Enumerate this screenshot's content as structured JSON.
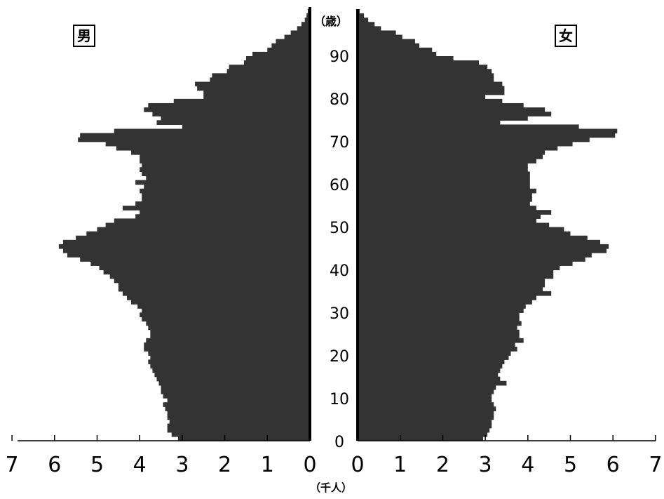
{
  "chart_data": {
    "type": "bar",
    "orientation": "horizontal",
    "title": "",
    "male_label": "男",
    "female_label": "女",
    "age_unit": "（歳）",
    "x_unit": "（千人）",
    "xlim": [
      0,
      7
    ],
    "x_ticks": [
      "0",
      "1",
      "2",
      "3",
      "4",
      "5",
      "6",
      "7"
    ],
    "age_ticks": [
      "0",
      "10",
      "20",
      "30",
      "40",
      "50",
      "60",
      "70",
      "80",
      "90"
    ],
    "grid": false,
    "colors": {
      "bar": "#333333",
      "axis": "#000000"
    },
    "ages": [
      0,
      1,
      2,
      3,
      4,
      5,
      6,
      7,
      8,
      9,
      10,
      11,
      12,
      13,
      14,
      15,
      16,
      17,
      18,
      19,
      20,
      21,
      22,
      23,
      24,
      25,
      26,
      27,
      28,
      29,
      30,
      31,
      32,
      33,
      34,
      35,
      36,
      37,
      38,
      39,
      40,
      41,
      42,
      43,
      44,
      45,
      46,
      47,
      48,
      49,
      50,
      51,
      52,
      53,
      54,
      55,
      56,
      57,
      58,
      59,
      60,
      61,
      62,
      63,
      64,
      65,
      66,
      67,
      68,
      69,
      70,
      71,
      72,
      73,
      74,
      75,
      76,
      77,
      78,
      79,
      80,
      81,
      82,
      83,
      84,
      85,
      86,
      87,
      88,
      89,
      90,
      91,
      92,
      93,
      94,
      95,
      96,
      97,
      98,
      99,
      100
    ],
    "series": [
      {
        "name": "男",
        "values": [
          3.1,
          3.25,
          3.35,
          3.35,
          3.3,
          3.35,
          3.35,
          3.4,
          3.45,
          3.35,
          3.45,
          3.5,
          3.5,
          3.55,
          3.6,
          3.65,
          3.7,
          3.75,
          3.8,
          3.75,
          3.8,
          3.9,
          3.9,
          3.85,
          3.75,
          3.75,
          3.8,
          3.85,
          3.95,
          4.0,
          3.95,
          4.05,
          4.2,
          4.3,
          4.4,
          4.5,
          4.5,
          4.6,
          4.7,
          4.85,
          4.95,
          5.15,
          5.4,
          5.7,
          5.8,
          5.9,
          5.8,
          5.5,
          5.25,
          5.0,
          4.8,
          4.6,
          4.1,
          4.0,
          4.4,
          4.1,
          3.95,
          3.95,
          4.0,
          3.9,
          4.1,
          3.85,
          3.95,
          4.0,
          3.95,
          4.0,
          4.0,
          4.2,
          4.55,
          4.8,
          5.45,
          5.4,
          4.6,
          3.0,
          3.6,
          3.5,
          3.7,
          3.9,
          3.8,
          3.2,
          2.5,
          2.5,
          2.65,
          2.7,
          2.35,
          2.3,
          1.95,
          1.9,
          1.55,
          1.5,
          1.35,
          1.0,
          0.9,
          0.8,
          0.6,
          0.45,
          0.3,
          0.2,
          0.12,
          0.08,
          0.05
        ]
      },
      {
        "name": "女",
        "values": [
          2.95,
          3.05,
          3.1,
          3.15,
          3.15,
          3.2,
          3.2,
          3.25,
          3.2,
          3.15,
          3.15,
          3.2,
          3.25,
          3.5,
          3.35,
          3.3,
          3.35,
          3.4,
          3.45,
          3.55,
          3.6,
          3.75,
          3.7,
          3.9,
          3.8,
          3.8,
          3.75,
          3.85,
          3.8,
          3.8,
          3.9,
          3.95,
          4.1,
          4.2,
          4.55,
          4.35,
          4.4,
          4.4,
          4.6,
          4.6,
          4.75,
          5.05,
          5.35,
          5.5,
          5.85,
          5.9,
          5.7,
          5.4,
          5.0,
          4.85,
          4.5,
          4.2,
          4.3,
          4.55,
          4.2,
          4.05,
          4.1,
          4.1,
          4.2,
          4.05,
          4.05,
          4.05,
          4.05,
          4.0,
          4.0,
          4.2,
          4.35,
          4.4,
          4.7,
          5.05,
          5.45,
          6.05,
          6.1,
          5.2,
          3.35,
          4.0,
          4.55,
          4.4,
          3.9,
          3.4,
          3.0,
          3.45,
          3.45,
          3.4,
          3.2,
          3.2,
          3.15,
          3.05,
          2.85,
          2.25,
          1.85,
          1.75,
          1.45,
          1.35,
          1.05,
          0.9,
          0.55,
          0.4,
          0.25,
          0.15,
          0.05
        ]
      }
    ]
  }
}
